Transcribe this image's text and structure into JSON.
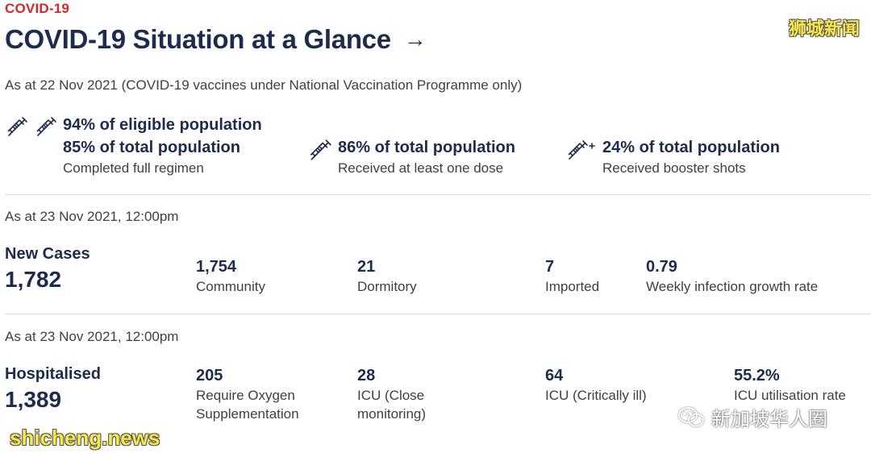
{
  "header": {
    "tag": "COVID-19",
    "title": "COVID-19 Situation at a Glance",
    "arrow": "→"
  },
  "watermarks": {
    "top_right": "狮城新闻",
    "bottom_left": "shicheng.news",
    "bottom_right": "新加坡华人圈"
  },
  "vaccination": {
    "as_at": "As at 22 Nov 2021 (COVID-19 vaccines under National Vaccination Programme only)",
    "full_regimen": {
      "line1": "94% of eligible population",
      "line2": "85% of total population",
      "label": "Completed full regimen"
    },
    "one_dose": {
      "line1": "86% of total population",
      "label": "Received at least one dose"
    },
    "booster": {
      "line1": "24% of total population",
      "label": "Received booster shots"
    }
  },
  "cases": {
    "as_at": "As at 23 Nov 2021, 12:00pm",
    "title": "New Cases",
    "total": "1,782",
    "stats": [
      {
        "value": "1,754",
        "label": "Community"
      },
      {
        "value": "21",
        "label": "Dormitory"
      },
      {
        "value": "7",
        "label": "Imported"
      },
      {
        "value": "0.79",
        "label": "Weekly infection growth rate"
      }
    ]
  },
  "hospital": {
    "as_at": "As at 23 Nov 2021, 12:00pm",
    "title": "Hospitalised",
    "total": "1,389",
    "stats": [
      {
        "value": "205",
        "label_line1": "Require Oxygen",
        "label_line2": "Supplementation"
      },
      {
        "value": "28",
        "label_line1": "ICU (Close",
        "label_line2": "monitoring)"
      },
      {
        "value": "64",
        "label_line1": "ICU (Critically ill)",
        "label_line2": ""
      },
      {
        "value": "55.2%",
        "label_line1": "ICU utilisation rate",
        "label_line2": ""
      }
    ]
  },
  "colors": {
    "accent_red": "#d8262c",
    "text_navy": "#1d2b4c",
    "watermark_yellow": "#f7e84a"
  },
  "icons": [
    "syringe-icon",
    "syringe-plus-icon",
    "wechat-icon"
  ]
}
